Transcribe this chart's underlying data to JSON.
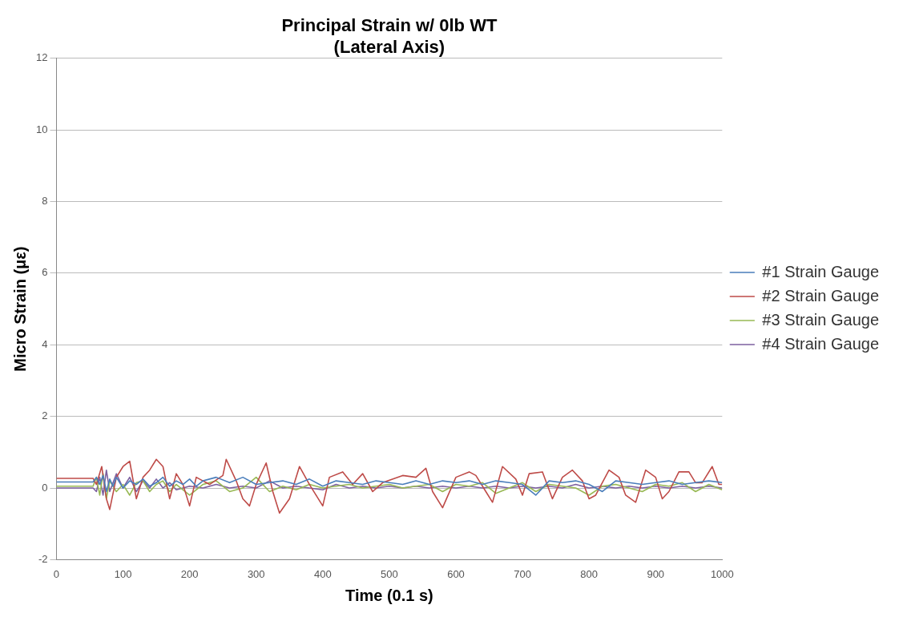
{
  "chart_data": {
    "type": "line",
    "title": [
      "Principal Strain w/ 0lb WT",
      "(Lateral Axis)"
    ],
    "xlabel": "Time (0.1 s)",
    "ylabel": "Micro Strain (με)",
    "xlim": [
      0,
      1000
    ],
    "xticks": [
      0,
      100,
      200,
      300,
      400,
      500,
      600,
      700,
      800,
      900,
      1000
    ],
    "ylim": [
      -2,
      12
    ],
    "yticks": [
      -2,
      0,
      2,
      4,
      6,
      8,
      10,
      12
    ],
    "grid": "y",
    "legend": "right",
    "marker": "none",
    "line_style": "solid",
    "series": [
      {
        "name": "#1 Strain Gauge",
        "color": "#4a7ebb",
        "x": [
          0,
          55,
          60,
          65,
          70,
          75,
          80,
          85,
          90,
          100,
          110,
          120,
          130,
          140,
          150,
          160,
          170,
          180,
          190,
          200,
          210,
          220,
          240,
          260,
          280,
          300,
          320,
          340,
          360,
          380,
          400,
          420,
          440,
          460,
          480,
          500,
          520,
          540,
          560,
          580,
          600,
          620,
          640,
          660,
          680,
          700,
          720,
          740,
          760,
          780,
          800,
          820,
          840,
          860,
          880,
          900,
          920,
          940,
          960,
          980,
          1000
        ],
        "values": [
          0.17,
          0.17,
          0.3,
          0.1,
          0.35,
          -0.1,
          0.25,
          0.05,
          0.3,
          0.0,
          0.2,
          0.1,
          0.25,
          0.05,
          0.15,
          0.3,
          0.05,
          0.2,
          0.1,
          0.25,
          0.05,
          0.2,
          0.3,
          0.15,
          0.3,
          0.1,
          0.15,
          0.2,
          0.1,
          0.25,
          0.05,
          0.2,
          0.15,
          0.1,
          0.2,
          0.15,
          0.1,
          0.2,
          0.1,
          0.2,
          0.15,
          0.2,
          0.1,
          0.2,
          0.15,
          0.1,
          -0.2,
          0.2,
          0.15,
          0.2,
          0.1,
          -0.1,
          0.2,
          0.15,
          0.1,
          0.15,
          0.2,
          0.1,
          0.15,
          0.2,
          0.15
        ]
      },
      {
        "name": "#2 Strain Gauge",
        "color": "#be4b48",
        "x": [
          0,
          55,
          60,
          68,
          75,
          80,
          90,
          100,
          110,
          120,
          130,
          140,
          150,
          160,
          170,
          180,
          190,
          200,
          210,
          230,
          250,
          255,
          270,
          280,
          290,
          300,
          315,
          325,
          335,
          350,
          365,
          380,
          400,
          410,
          430,
          445,
          460,
          475,
          490,
          520,
          540,
          555,
          565,
          580,
          600,
          620,
          630,
          645,
          655,
          670,
          690,
          700,
          710,
          730,
          745,
          760,
          775,
          790,
          800,
          810,
          830,
          845,
          855,
          870,
          885,
          900,
          910,
          920,
          935,
          950,
          960,
          970,
          985,
          995,
          1000
        ],
        "values": [
          0.27,
          0.27,
          0.1,
          0.6,
          -0.3,
          -0.6,
          0.3,
          0.6,
          0.75,
          -0.3,
          0.3,
          0.5,
          0.8,
          0.6,
          -0.3,
          0.4,
          0.1,
          -0.5,
          0.3,
          0.1,
          0.35,
          0.8,
          0.2,
          -0.3,
          -0.5,
          0.1,
          0.7,
          -0.1,
          -0.7,
          -0.3,
          0.6,
          0.1,
          -0.5,
          0.3,
          0.45,
          0.1,
          0.4,
          -0.1,
          0.15,
          0.35,
          0.3,
          0.55,
          -0.1,
          -0.55,
          0.3,
          0.45,
          0.35,
          -0.1,
          -0.4,
          0.6,
          0.25,
          -0.2,
          0.4,
          0.45,
          -0.3,
          0.3,
          0.5,
          0.2,
          -0.3,
          -0.2,
          0.5,
          0.3,
          -0.2,
          -0.4,
          0.5,
          0.3,
          -0.3,
          -0.1,
          0.45,
          0.45,
          0.15,
          0.15,
          0.6,
          0.1,
          0.1
        ]
      },
      {
        "name": "#3 Strain Gauge",
        "color": "#98b954",
        "x": [
          0,
          55,
          60,
          65,
          70,
          75,
          80,
          90,
          100,
          110,
          120,
          130,
          140,
          150,
          160,
          170,
          180,
          200,
          220,
          240,
          260,
          280,
          300,
          320,
          340,
          360,
          380,
          400,
          420,
          440,
          460,
          480,
          500,
          520,
          540,
          560,
          580,
          600,
          620,
          640,
          660,
          680,
          700,
          720,
          740,
          760,
          780,
          800,
          820,
          840,
          860,
          880,
          900,
          920,
          940,
          960,
          980,
          1000
        ],
        "values": [
          0.05,
          0.05,
          0.3,
          -0.2,
          0.4,
          -0.3,
          0.2,
          -0.1,
          0.1,
          -0.2,
          0.15,
          0.2,
          -0.1,
          0.1,
          0.2,
          -0.1,
          0.1,
          -0.2,
          0.1,
          0.2,
          -0.1,
          0.0,
          0.3,
          -0.1,
          0.05,
          -0.05,
          0.1,
          0.0,
          0.05,
          0.1,
          0.0,
          0.05,
          0.1,
          0.0,
          0.05,
          0.1,
          -0.1,
          0.1,
          0.05,
          0.15,
          -0.15,
          0.0,
          0.15,
          -0.1,
          0.1,
          0.05,
          0.0,
          -0.2,
          0.05,
          0.1,
          0.0,
          -0.1,
          0.1,
          0.05,
          0.15,
          -0.1,
          0.1,
          -0.05
        ]
      },
      {
        "name": "#4 Strain Gauge",
        "color": "#7d60a0",
        "x": [
          0,
          55,
          60,
          65,
          70,
          75,
          80,
          90,
          100,
          110,
          120,
          130,
          140,
          150,
          160,
          170,
          180,
          200,
          220,
          240,
          260,
          280,
          300,
          320,
          340,
          360,
          380,
          400,
          420,
          440,
          460,
          480,
          500,
          520,
          540,
          560,
          580,
          600,
          620,
          640,
          660,
          680,
          700,
          720,
          740,
          760,
          780,
          800,
          820,
          840,
          860,
          880,
          900,
          920,
          940,
          960,
          980,
          1000
        ],
        "values": [
          0.0,
          0.0,
          -0.1,
          0.3,
          -0.2,
          0.5,
          -0.1,
          0.4,
          0.0,
          0.3,
          -0.1,
          0.2,
          0.0,
          0.25,
          0.0,
          0.15,
          -0.05,
          0.05,
          0.0,
          0.1,
          0.0,
          0.05,
          0.0,
          0.2,
          0.0,
          0.05,
          0.0,
          -0.05,
          0.1,
          0.0,
          0.05,
          0.0,
          0.05,
          0.0,
          0.05,
          0.0,
          0.05,
          0.0,
          0.05,
          0.0,
          0.05,
          0.0,
          0.05,
          0.0,
          0.05,
          0.0,
          0.1,
          0.0,
          0.05,
          0.0,
          0.05,
          0.0,
          0.05,
          0.0,
          0.05,
          0.0,
          0.05,
          0.0
        ]
      }
    ]
  }
}
